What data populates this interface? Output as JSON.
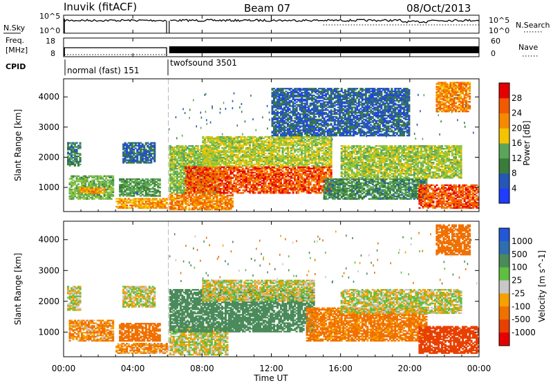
{
  "header": {
    "station": "Inuvik (fitACF)",
    "beam": "Beam 07",
    "date": "08/Oct/2013"
  },
  "noise_panel": {
    "left_label": "N.Sky",
    "right_label": "N.Search",
    "left_ticks": [
      "10^5",
      "10^0"
    ],
    "right_ticks": [
      "10^5",
      "10^0"
    ]
  },
  "freq_panel": {
    "left_label_top": "Freq.",
    "left_label_bottom": "[MHz]",
    "right_label": "Nave",
    "left_ticks": [
      "18",
      "8"
    ],
    "right_ticks": [
      "60",
      "0"
    ]
  },
  "cpid": {
    "label": "CPID",
    "segments": [
      {
        "name": "normal (fast) 151",
        "start_h": 0.0,
        "end_h": 6.0
      },
      {
        "name": "twofsound 3501",
        "start_h": 6.0,
        "end_h": 24.0
      }
    ]
  },
  "time_axis": {
    "label": "Time UT",
    "ticks": [
      "00:00",
      "04:00",
      "08:00",
      "12:00",
      "16:00",
      "20:00",
      "00:00"
    ],
    "range_h": [
      0,
      24
    ]
  },
  "colors": {
    "power": [
      "#1f3cff",
      "#2457b8",
      "#3a7d3a",
      "#5aa55a",
      "#8ec63f",
      "#f5c400",
      "#f58a00",
      "#f25a00",
      "#e60000"
    ],
    "velocity": [
      "#2457d8",
      "#2f6fb0",
      "#4b8a5a",
      "#5fbf3f",
      "#c8c8c8",
      "#f7a000",
      "#f07000",
      "#e84000",
      "#e60000"
    ]
  },
  "chart_data": [
    {
      "type": "heatmap",
      "name": "power_panel",
      "ylabel": "Slant Range [km]",
      "xlabel": "",
      "yticks": [
        1000,
        2000,
        3000,
        4000
      ],
      "ylim": [
        200,
        4600
      ],
      "colorbar_label": "Power [dB]",
      "colorbar_ticks": [
        4,
        8,
        12,
        16,
        20,
        24,
        28
      ],
      "colorbar_range": [
        0,
        32
      ],
      "regions": [
        {
          "t0": 0.3,
          "t1": 2.9,
          "r0": 600,
          "r1": 1400,
          "v": 14
        },
        {
          "t0": 0.9,
          "t1": 2.4,
          "r0": 800,
          "r1": 1000,
          "v": 22
        },
        {
          "t0": 0.2,
          "t1": 1.0,
          "r0": 1700,
          "r1": 2500,
          "v": 9
        },
        {
          "t0": 3.2,
          "t1": 5.6,
          "r0": 700,
          "r1": 1300,
          "v": 11
        },
        {
          "t0": 3.0,
          "t1": 6.0,
          "r0": 300,
          "r1": 650,
          "v": 22
        },
        {
          "t0": 3.4,
          "t1": 5.3,
          "r0": 1800,
          "r1": 2500,
          "v": 7
        },
        {
          "t0": 6.1,
          "t1": 9.8,
          "r0": 250,
          "r1": 800,
          "v": 24
        },
        {
          "t0": 6.1,
          "t1": 9.0,
          "r0": 800,
          "r1": 2400,
          "v": 15
        },
        {
          "t0": 7.0,
          "t1": 15.5,
          "r0": 800,
          "r1": 1700,
          "v": 27
        },
        {
          "t0": 8.0,
          "t1": 15.5,
          "r0": 1700,
          "r1": 2700,
          "v": 17
        },
        {
          "t0": 15.0,
          "t1": 21.0,
          "r0": 600,
          "r1": 1300,
          "v": 10
        },
        {
          "t0": 16.0,
          "t1": 23.0,
          "r0": 1300,
          "r1": 2400,
          "v": 16
        },
        {
          "t0": 20.5,
          "t1": 24.0,
          "r0": 300,
          "r1": 1100,
          "v": 27
        },
        {
          "t0": 21.5,
          "t1": 23.5,
          "r0": 3500,
          "r1": 4500,
          "v": 24
        },
        {
          "t0": 12.0,
          "t1": 20.0,
          "r0": 2700,
          "r1": 4300,
          "v": 6
        }
      ]
    },
    {
      "type": "heatmap",
      "name": "velocity_panel",
      "ylabel": "Slant Range [km]",
      "xlabel": "Time UT",
      "yticks": [
        1000,
        2000,
        3000,
        4000
      ],
      "ylim": [
        200,
        4600
      ],
      "colorbar_label": "Velocity [m s^-1]",
      "colorbar_ticks": [
        1000,
        500,
        100,
        25,
        -25,
        -100,
        -500,
        -1000
      ],
      "regions": [
        {
          "t0": 0.3,
          "t1": 2.9,
          "r0": 700,
          "r1": 1400,
          "v": -100
        },
        {
          "t0": 0.2,
          "t1": 1.0,
          "r0": 1700,
          "r1": 2500,
          "v": 0
        },
        {
          "t0": 3.2,
          "t1": 5.6,
          "r0": 700,
          "r1": 1300,
          "v": -300
        },
        {
          "t0": 3.0,
          "t1": 6.0,
          "r0": 300,
          "r1": 650,
          "v": -100
        },
        {
          "t0": 3.4,
          "t1": 5.3,
          "r0": 1800,
          "r1": 2500,
          "v": 0
        },
        {
          "t0": 6.1,
          "t1": 9.5,
          "r0": 250,
          "r1": 1200,
          "v": 0
        },
        {
          "t0": 6.1,
          "t1": 14.5,
          "r0": 1000,
          "r1": 2400,
          "v": 200
        },
        {
          "t0": 8.0,
          "t1": 14.5,
          "r0": 2000,
          "r1": 2700,
          "v": 0
        },
        {
          "t0": 14.0,
          "t1": 21.0,
          "r0": 700,
          "r1": 1800,
          "v": -150
        },
        {
          "t0": 16.0,
          "t1": 23.0,
          "r0": 1600,
          "r1": 2400,
          "v": 0
        },
        {
          "t0": 20.5,
          "t1": 24.0,
          "r0": 300,
          "r1": 1200,
          "v": -800
        },
        {
          "t0": 21.5,
          "t1": 23.5,
          "r0": 3500,
          "r1": 4500,
          "v": -300
        }
      ]
    }
  ]
}
